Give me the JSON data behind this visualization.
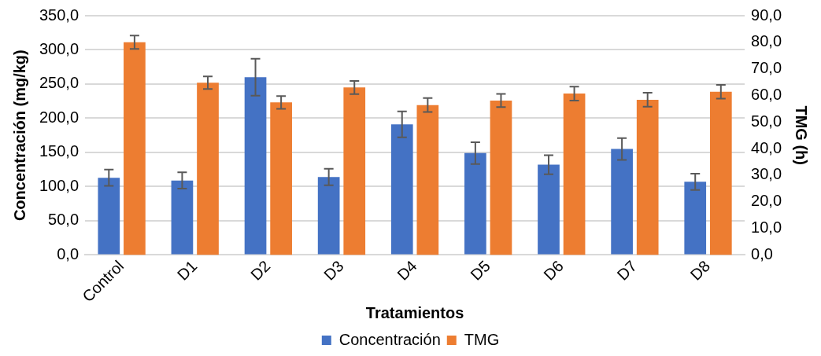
{
  "chart_data": {
    "type": "bar",
    "xlabel": "Tratamientos",
    "ylabel": "Concentración (mg/kg)",
    "y2label": "TMG (h)",
    "categories": [
      "Control",
      "D1",
      "D2",
      "D3",
      "D4",
      "D5",
      "D6",
      "D7",
      "D8"
    ],
    "series": [
      {
        "name": "Concentración",
        "color": "#4472c4",
        "values": [
          113,
          109,
          260,
          114,
          191,
          149,
          132,
          155,
          107
        ],
        "errors": [
          12,
          12,
          27,
          12,
          19,
          16,
          14,
          16,
          12
        ]
      },
      {
        "name": "TMG",
        "color": "#ed7d31",
        "axis": "y2",
        "values": [
          80,
          64.8,
          57.4,
          63,
          56.4,
          58.1,
          60.7,
          58.4,
          61.4
        ],
        "errors": [
          2.5,
          2.4,
          2.4,
          2.5,
          2.6,
          2.5,
          2.6,
          2.6,
          2.6
        ]
      }
    ],
    "ylim": [
      0,
      350
    ],
    "yticks": [
      {
        "value": 0,
        "label": "0,0"
      },
      {
        "value": 50,
        "label": "50,0"
      },
      {
        "value": 100,
        "label": "100,0"
      },
      {
        "value": 150,
        "label": "150,0"
      },
      {
        "value": 200,
        "label": "200,0"
      },
      {
        "value": 250,
        "label": "250,0"
      },
      {
        "value": 300,
        "label": "300,0"
      },
      {
        "value": 350,
        "label": "350,0"
      }
    ],
    "y2lim": [
      0,
      90
    ],
    "y2ticks": [
      {
        "value": 0,
        "label": "0,0"
      },
      {
        "value": 10,
        "label": "10,0"
      },
      {
        "value": 20,
        "label": "20,0"
      },
      {
        "value": 30,
        "label": "30,0"
      },
      {
        "value": 40,
        "label": "40,0"
      },
      {
        "value": 50,
        "label": "50,0"
      },
      {
        "value": 60,
        "label": "60,0"
      },
      {
        "value": 70,
        "label": "70,0"
      },
      {
        "value": 80,
        "label": "80,0"
      },
      {
        "value": 90,
        "label": "90,0"
      }
    ],
    "grid": "y",
    "legend": "bottom"
  }
}
